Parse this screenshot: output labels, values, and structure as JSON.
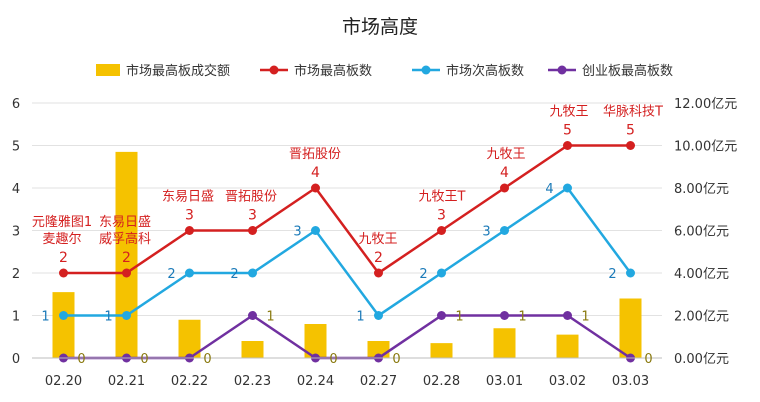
{
  "chart_data": {
    "type": "bar",
    "title": "市场高度",
    "categories": [
      "02.20",
      "02.21",
      "02.22",
      "02.23",
      "02.24",
      "02.27",
      "02.28",
      "03.01",
      "03.02",
      "03.03"
    ],
    "series": [
      {
        "name": "市场最高板成交额",
        "type": "bar",
        "axis": "right",
        "color": "#F5C200",
        "values": [
          3.1,
          9.7,
          1.8,
          0.8,
          1.6,
          0.8,
          0.7,
          1.4,
          1.1,
          2.8
        ]
      },
      {
        "name": "市场最高板数",
        "type": "line",
        "axis": "left",
        "color": "#D42020",
        "values": [
          2,
          2,
          3,
          3,
          4,
          2,
          3,
          4,
          5,
          5
        ]
      },
      {
        "name": "市场次高板数",
        "type": "line",
        "axis": "left",
        "color": "#22A8E0",
        "values": [
          1,
          1,
          2,
          2,
          3,
          1,
          2,
          3,
          4,
          2
        ]
      },
      {
        "name": "创业板最高板数",
        "type": "line",
        "axis": "left",
        "color": "#7030A0",
        "values": [
          0,
          0,
          0,
          1,
          0,
          0,
          1,
          1,
          1,
          0
        ]
      }
    ],
    "stock_labels": [
      [
        "元隆雅图1",
        "麦趣尔"
      ],
      [
        "东易日盛",
        "威孚高科"
      ],
      [
        "东易日盛"
      ],
      [
        "晋拓股份"
      ],
      [
        "晋拓股份"
      ],
      [
        "九牧王"
      ],
      [
        "九牧王T"
      ],
      [
        "九牧王"
      ],
      [
        "九牧王"
      ],
      [
        "华脉科技T"
      ]
    ],
    "y_left": {
      "min": 0,
      "max": 6,
      "ticks": [
        "0",
        "1",
        "2",
        "3",
        "4",
        "5",
        "6"
      ]
    },
    "y_right": {
      "min": 0,
      "max": 12,
      "ticks": [
        "0.00亿元",
        "2.00亿元",
        "4.00亿元",
        "6.00亿元",
        "8.00亿元",
        "10.00亿元",
        "12.00亿元"
      ]
    },
    "legend_position": "top",
    "grid": true
  }
}
